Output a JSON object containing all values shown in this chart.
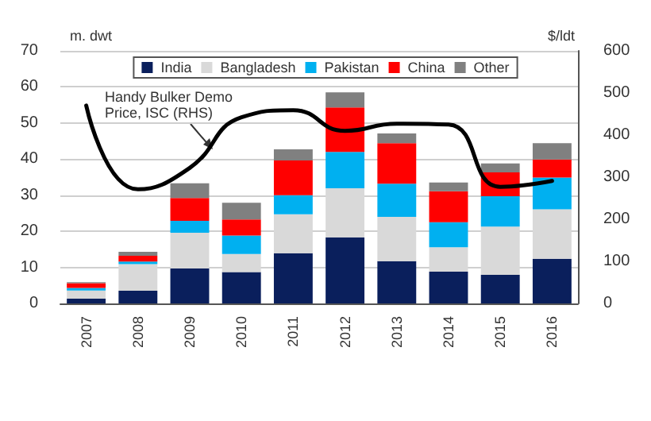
{
  "chart_data": {
    "type": "bar",
    "stacked": true,
    "ylabel": "m. dwt",
    "y2label": "$/ldt",
    "categories": [
      "2007",
      "2008",
      "2009",
      "2010",
      "2011",
      "2012",
      "2013",
      "2014",
      "2015",
      "2016"
    ],
    "series": [
      {
        "name": "India",
        "color": "#0a1f5c",
        "values": [
          1.3,
          3.5,
          9.7,
          8.7,
          13.9,
          18.3,
          11.7,
          8.8,
          7.9,
          12.4
        ]
      },
      {
        "name": "Bangladesh",
        "color": "#d9d9d9",
        "values": [
          2.3,
          7.4,
          9.9,
          5.0,
          10.8,
          13.6,
          12.3,
          6.8,
          13.4,
          13.7
        ]
      },
      {
        "name": "Pakistan",
        "color": "#00b0f0",
        "values": [
          0.7,
          0.7,
          3.3,
          5.1,
          5.3,
          10.1,
          9.2,
          6.9,
          8.4,
          8.8
        ]
      },
      {
        "name": "China",
        "color": "#ff0000",
        "values": [
          1.3,
          1.6,
          6.3,
          4.5,
          9.6,
          12.3,
          11.2,
          8.6,
          6.6,
          5.0
        ]
      },
      {
        "name": "Other",
        "color": "#808080",
        "values": [
          0.3,
          1.1,
          4.1,
          4.6,
          3.1,
          4.2,
          2.7,
          2.4,
          2.5,
          4.5
        ]
      },
      {
        "name": "Handy Bulker Demo Price, ISC (RHS)",
        "type": "line",
        "axis": "y2",
        "color": "#000000",
        "values": [
          470,
          271,
          322,
          442,
          459,
          410,
          427,
          425,
          277,
          291
        ]
      }
    ],
    "ylim": [
      0,
      70
    ],
    "yticks": [
      0,
      10,
      20,
      30,
      40,
      50,
      60,
      70
    ],
    "y2lim": [
      0,
      600
    ],
    "y2ticks": [
      0,
      100,
      200,
      300,
      400,
      500,
      600
    ],
    "grid": "y",
    "legend": "top"
  }
}
